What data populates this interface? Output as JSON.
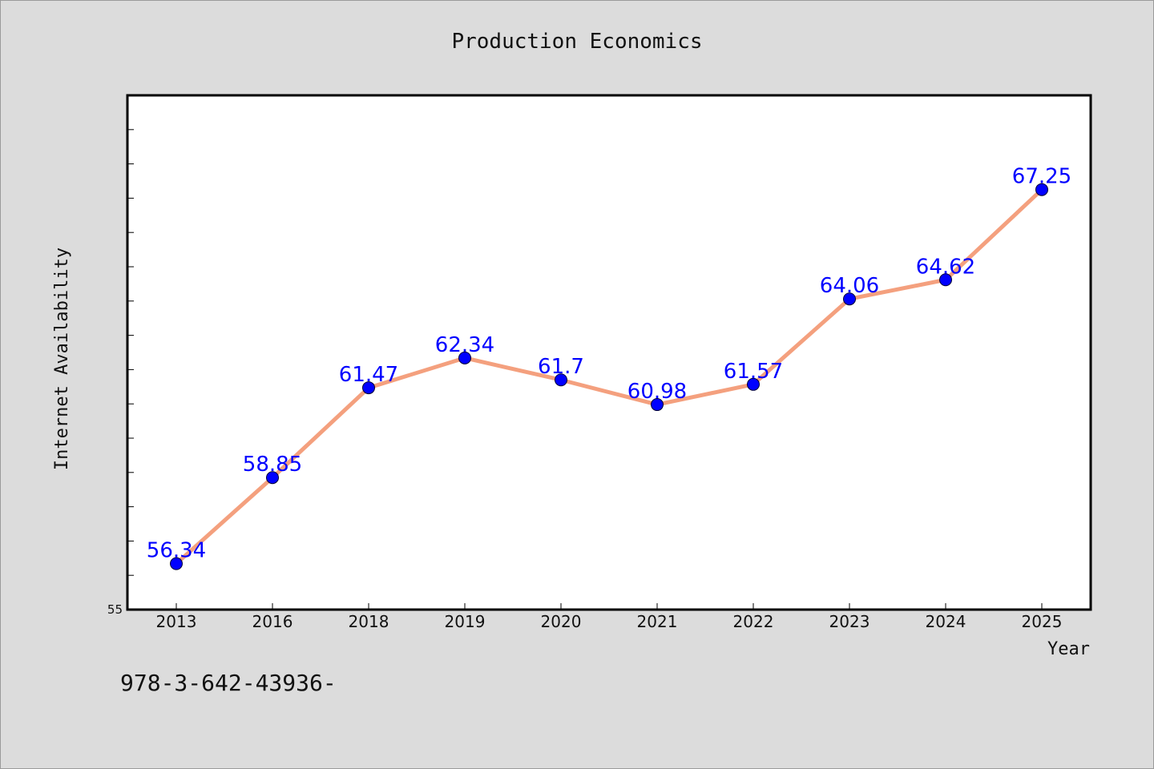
{
  "chart_data": {
    "type": "line",
    "title": "Production Economics",
    "xlabel": "Year",
    "ylabel": "Internet Availability",
    "categories": [
      "2013",
      "2016",
      "2018",
      "2019",
      "2020",
      "2021",
      "2022",
      "2023",
      "2024",
      "2025"
    ],
    "series": [
      {
        "values": [
          56.34,
          58.85,
          61.47,
          62.34,
          61.7,
          60.98,
          61.57,
          64.06,
          64.62,
          67.25
        ],
        "labels": [
          "56.34",
          "58.85",
          "61.47",
          "62.34",
          "61.7",
          "60.98",
          "61.57",
          "64.06",
          "64.62",
          "67.25"
        ],
        "line_color": "#f4a07e",
        "marker_color": "#0000ff"
      }
    ],
    "ylim": [
      55,
      70
    ],
    "ytick_labels": [
      "55"
    ],
    "grid": false,
    "background": "#dcdcdc",
    "plot_background": "#ffffff"
  },
  "footer": {
    "isbn": "978-3-642-43936-"
  }
}
